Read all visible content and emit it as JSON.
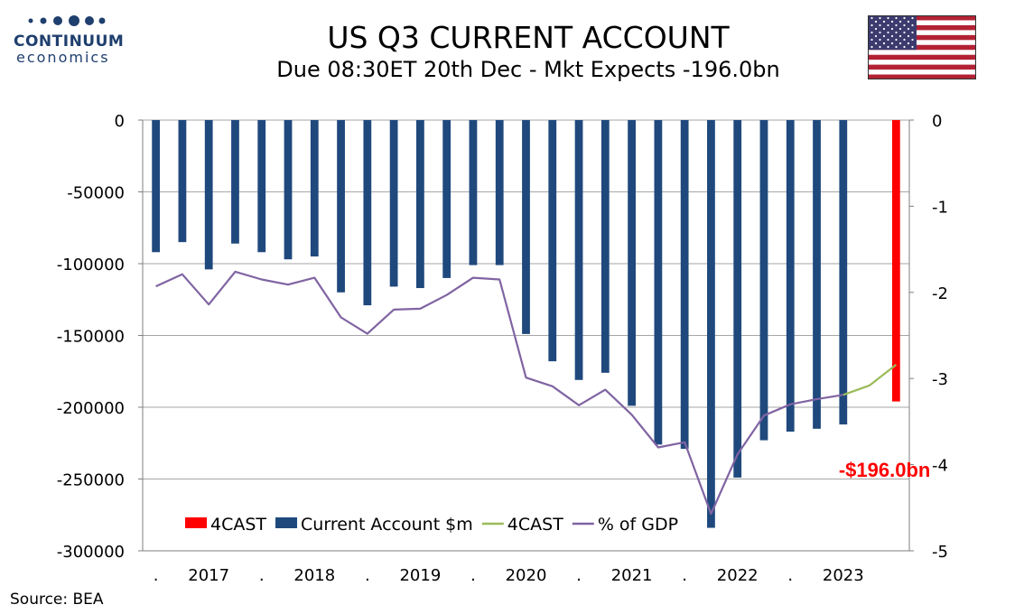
{
  "logo": {
    "brand": "CONTINUUM",
    "sub": "economics"
  },
  "header": {
    "title": "US Q3 CURRENT ACCOUNT",
    "subtitle": "Due 08:30ET  20th Dec - Mkt Expects -196.0bn"
  },
  "flag": {
    "name": "us-flag-icon"
  },
  "source": "Source: BEA",
  "colors": {
    "bars": "#1f497d",
    "forecast_bar": "#ff0000",
    "gdp_line": "#8064a2",
    "forecast_line": "#9bbb59",
    "annotation": "#ff0000"
  },
  "chart_data": {
    "type": "bar",
    "periods": [
      "2016Q3",
      "2016Q4",
      "2017Q1",
      "2017Q2",
      "2017Q3",
      "2017Q4",
      "2018Q1",
      "2018Q2",
      "2018Q3",
      "2018Q4",
      "2019Q1",
      "2019Q2",
      "2019Q3",
      "2019Q4",
      "2020Q1",
      "2020Q2",
      "2020Q3",
      "2020Q4",
      "2021Q1",
      "2021Q2",
      "2021Q3",
      "2021Q4",
      "2022Q1",
      "2022Q2",
      "2022Q3",
      "2022Q4",
      "2023Q1",
      "2023Q2",
      "2023Q3"
    ],
    "x_tick_labels": [
      ".",
      "2017",
      ".",
      "2018",
      ".",
      "2019",
      ".",
      "2020",
      ".",
      "2021",
      ".",
      "2022",
      ".",
      "2023"
    ],
    "series": [
      {
        "name": "Current Account $m",
        "axis": "left",
        "type": "bar",
        "values": [
          -92000,
          -85000,
          -104000,
          -86000,
          -92000,
          -97000,
          -95000,
          -120000,
          -129000,
          -116000,
          -117000,
          -110000,
          -101000,
          -101000,
          -149000,
          -168000,
          -181000,
          -176000,
          -199000,
          -226000,
          -229000,
          -284000,
          -249000,
          -223000,
          -217000,
          -215000,
          -212000,
          null,
          null
        ]
      },
      {
        "name": "4CAST",
        "axis": "left",
        "type": "bar",
        "values": [
          null,
          null,
          null,
          null,
          null,
          null,
          null,
          null,
          null,
          null,
          null,
          null,
          null,
          null,
          null,
          null,
          null,
          null,
          null,
          null,
          null,
          null,
          null,
          null,
          null,
          null,
          null,
          null,
          -196000
        ]
      },
      {
        "name": "% of GDP",
        "axis": "right",
        "type": "line",
        "values": [
          -1.93,
          -1.79,
          -2.14,
          -1.76,
          -1.85,
          -1.91,
          -1.83,
          -2.29,
          -2.48,
          -2.2,
          -2.19,
          -2.03,
          -1.83,
          -1.85,
          -2.99,
          -3.09,
          -3.31,
          -3.13,
          -3.42,
          -3.8,
          -3.74,
          -4.57,
          -3.88,
          -3.43,
          -3.3,
          -3.24,
          -3.19,
          null,
          null
        ]
      },
      {
        "name": "4CAST",
        "axis": "right",
        "type": "line",
        "values": [
          null,
          null,
          null,
          null,
          null,
          null,
          null,
          null,
          null,
          null,
          null,
          null,
          null,
          null,
          null,
          null,
          null,
          null,
          null,
          null,
          null,
          null,
          null,
          null,
          null,
          null,
          -3.19,
          -3.08,
          -2.84
        ]
      }
    ],
    "legend": [
      {
        "label": "4CAST",
        "kind": "bar",
        "color": "#ff0000"
      },
      {
        "label": "Current Account $m",
        "kind": "bar",
        "color": "#1f497d"
      },
      {
        "label": "4CAST",
        "kind": "line",
        "color": "#9bbb59"
      },
      {
        "label": "% of GDP",
        "kind": "line",
        "color": "#8064a2"
      }
    ],
    "legend_position": "bottom-left",
    "annotation": "-$196.0bn",
    "y_left": {
      "min": -300000,
      "max": 0,
      "ticks": [
        "0",
        "-50000",
        "-100000",
        "-150000",
        "-200000",
        "-250000",
        "-300000"
      ],
      "values": [
        0,
        -50000,
        -100000,
        -150000,
        -200000,
        -250000,
        -300000
      ]
    },
    "y_right": {
      "min": -5,
      "max": 0,
      "ticks": [
        "0",
        "-1",
        "-2",
        "-3",
        "-4",
        "-5"
      ],
      "values": [
        0,
        -1,
        -2,
        -3,
        -4,
        -5
      ]
    },
    "grid": true
  }
}
